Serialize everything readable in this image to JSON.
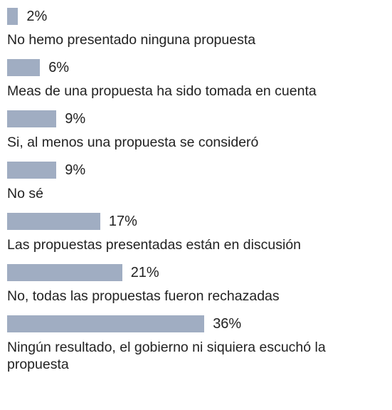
{
  "chart_data": {
    "type": "bar",
    "categories": [
      "No hemo presentado ninguna propuesta",
      "Meas de una propuesta ha sido tomada en cuenta",
      "Si, al menos una propuesta se consideró",
      "No sé",
      "Las propuestas presentadas están en discusión",
      "No, todas las propuestas fueron rechazadas",
      "Ningún resultado, el gobierno ni siquiera escuchó la propuesta"
    ],
    "values": [
      2,
      6,
      9,
      9,
      17,
      21,
      36
    ],
    "value_labels": [
      "2%",
      "6%",
      "9%",
      "9%",
      "17%",
      "21%",
      "36%"
    ],
    "color": "#a0adc2"
  }
}
